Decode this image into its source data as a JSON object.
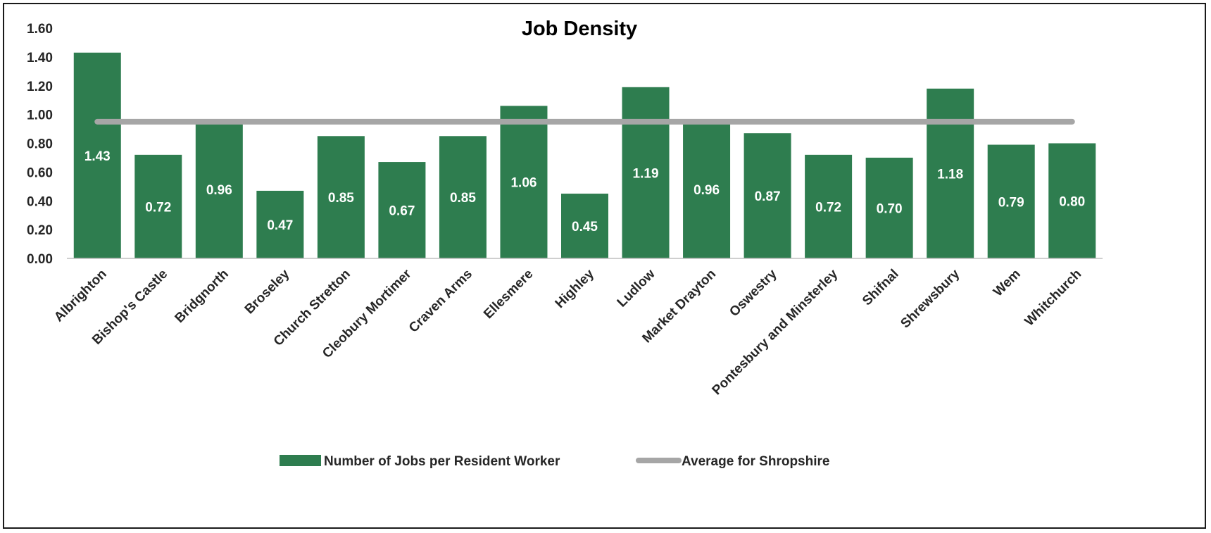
{
  "chart_data": {
    "type": "bar",
    "title": "Job Density",
    "xlabel": "",
    "ylabel": "",
    "ylim": [
      0,
      1.6
    ],
    "yticks": [
      "0.00",
      "0.20",
      "0.40",
      "0.60",
      "0.80",
      "1.00",
      "1.20",
      "1.40",
      "1.60"
    ],
    "grid": false,
    "legend_position": "bottom",
    "categories": [
      "Albrighton",
      "Bishop's Castle",
      "Bridgnorth",
      "Broseley",
      "Church Stretton",
      "Cleobury Mortimer",
      "Craven Arms",
      "Ellesmere",
      "Highley",
      "Ludlow",
      "Market Drayton",
      "Oswestry",
      "Pontesbury and Minsterley",
      "Shifnal",
      "Shrewsbury",
      "Wem",
      "Whitchurch"
    ],
    "series": [
      {
        "name": "Number of Jobs per Resident Worker",
        "type": "bar",
        "color": "#2e7d4f",
        "values": [
          1.43,
          0.72,
          0.96,
          0.47,
          0.85,
          0.67,
          0.85,
          1.06,
          0.45,
          1.19,
          0.96,
          0.87,
          0.72,
          0.7,
          1.18,
          0.79,
          0.8
        ],
        "data_labels": [
          "1.43",
          "0.72",
          "0.96",
          "0.47",
          "0.85",
          "0.67",
          "0.85",
          "1.06",
          "0.45",
          "1.19",
          "0.96",
          "0.87",
          "0.72",
          "0.70",
          "1.18",
          "0.79",
          "0.80"
        ]
      },
      {
        "name": "Average for Shropshire",
        "type": "line",
        "color": "#a6a6a6",
        "value": 0.95
      }
    ]
  }
}
